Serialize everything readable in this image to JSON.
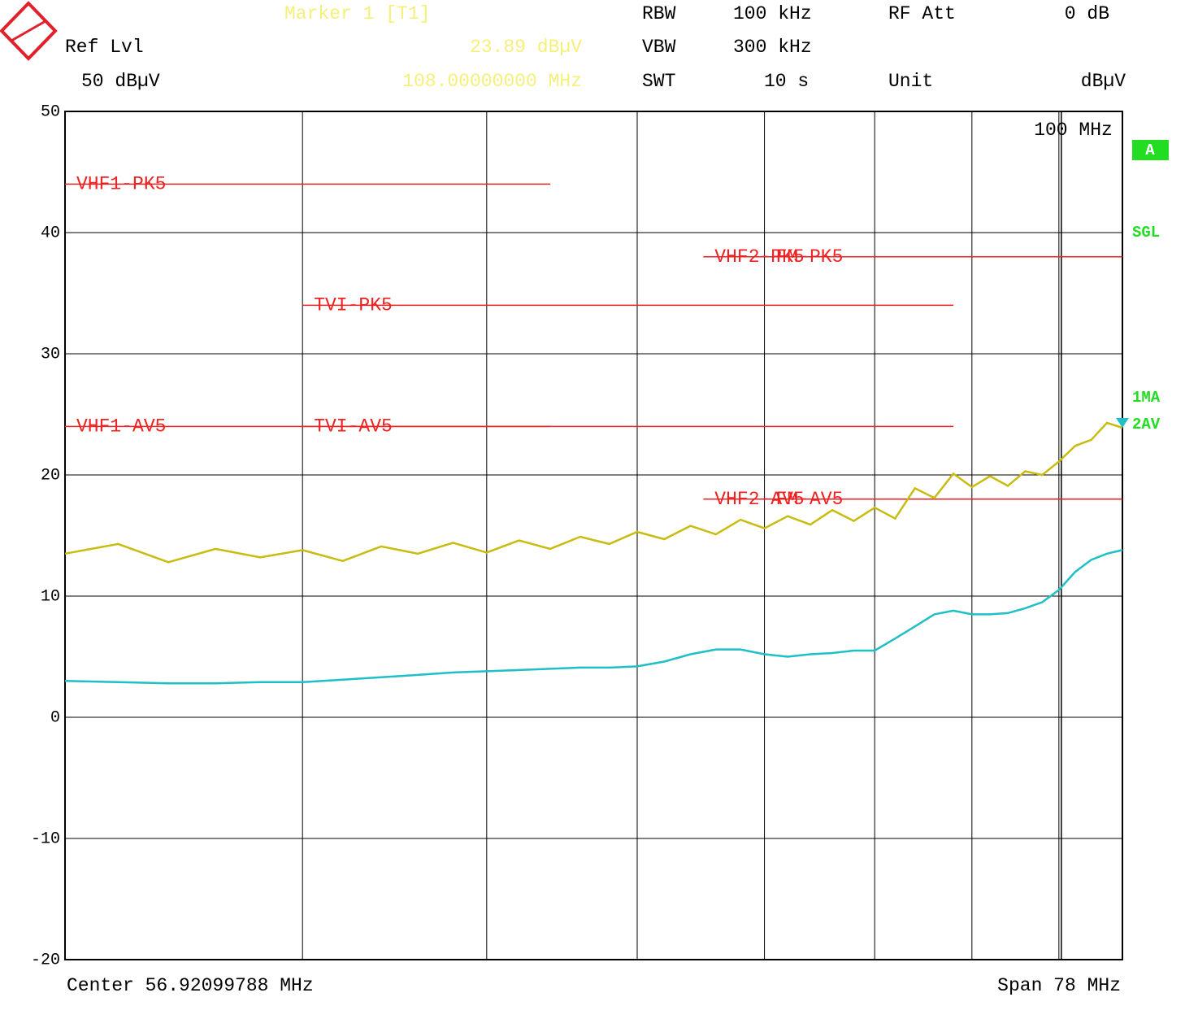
{
  "header": {
    "marker_title": "Marker 1 [T1]",
    "marker_level": "23.89 dBµV",
    "marker_freq": "108.00000000 MHz",
    "ref_lvl_label": "Ref Lvl",
    "ref_lvl": "50 dBµV",
    "rbw_label": "RBW",
    "rbw": "100 kHz",
    "vbw_label": "VBW",
    "vbw": "300 kHz",
    "swt_label": "SWT",
    "swt": "10 s",
    "rf_att_label": "RF Att",
    "rf_att": "0 dB",
    "unit_label": "Unit",
    "unit": "dBµV"
  },
  "footer": {
    "center": "Center 56.92099788 MHz",
    "span": "Span 78 MHz"
  },
  "side": {
    "trace_mode": "A",
    "sweep": "SGL"
  },
  "chart_data": {
    "type": "line",
    "log_x": true,
    "grid": true,
    "xlim": [
      30,
      108
    ],
    "xticks": [
      40,
      50,
      60,
      70,
      80,
      90,
      100
    ],
    "ylim": [
      -20,
      50
    ],
    "yticks": [
      -20,
      -10,
      0,
      10,
      20,
      30,
      40,
      50
    ],
    "display_line": {
      "value": 100,
      "label": "100 MHz"
    },
    "x": [
      30,
      32,
      34,
      36,
      38,
      40,
      42,
      44,
      46,
      48,
      50,
      52,
      54,
      56,
      58,
      60,
      62,
      64,
      66,
      68,
      70,
      72,
      74,
      76,
      78,
      80,
      82,
      84,
      86,
      88,
      90,
      92,
      94,
      96,
      98,
      100,
      102,
      104,
      106,
      108
    ],
    "series": [
      {
        "name": "1MA",
        "color": "#c8bc10",
        "values": [
          13.5,
          14.3,
          12.8,
          13.9,
          13.2,
          13.8,
          12.9,
          14.1,
          13.5,
          14.4,
          13.6,
          14.6,
          13.9,
          14.9,
          14.3,
          15.3,
          14.7,
          15.8,
          15.1,
          16.3,
          15.6,
          16.6,
          15.9,
          17.1,
          16.2,
          17.3,
          16.4,
          18.9,
          18.1,
          20.1,
          19.0,
          19.9,
          19.1,
          20.3,
          20.0,
          21.1,
          22.4,
          22.9,
          24.3,
          23.89
        ]
      },
      {
        "name": "2AV",
        "color": "#1fbfc8",
        "values": [
          3.0,
          2.9,
          2.8,
          2.8,
          2.9,
          2.9,
          3.1,
          3.3,
          3.5,
          3.7,
          3.8,
          3.9,
          4.0,
          4.1,
          4.1,
          4.2,
          4.6,
          5.2,
          5.6,
          5.6,
          5.2,
          5.0,
          5.2,
          5.3,
          5.5,
          5.5,
          6.5,
          7.5,
          8.5,
          8.8,
          8.5,
          8.5,
          8.6,
          9.0,
          9.5,
          10.5,
          12.0,
          13.0,
          13.5,
          13.8
        ]
      }
    ],
    "limit_lines": [
      {
        "name": "VHF1-PK5",
        "color": "#ee2222",
        "x": [
          30,
          54
        ],
        "values": [
          44,
          44
        ]
      },
      {
        "name": "TVI-PK5",
        "color": "#ee2222",
        "x": [
          40,
          88
        ],
        "values": [
          34,
          34
        ]
      },
      {
        "name": "VHF2-PK5",
        "color": "#ee2222",
        "x": [
          65,
          88
        ],
        "values": [
          38,
          38
        ]
      },
      {
        "name": "FM-PK5",
        "color": "#ee2222",
        "x": [
          70,
          108
        ],
        "values": [
          38,
          38
        ]
      },
      {
        "name": "VHF1-AV5",
        "color": "#ee2222",
        "x": [
          30,
          54
        ],
        "values": [
          24,
          24
        ]
      },
      {
        "name": "TVI-AV5",
        "color": "#ee2222",
        "x": [
          40,
          88
        ],
        "values": [
          24,
          24
        ]
      },
      {
        "name": "VHF2-AV5",
        "color": "#ee2222",
        "x": [
          65,
          88
        ],
        "values": [
          18,
          18
        ]
      },
      {
        "name": "FM-AV5",
        "color": "#ee2222",
        "x": [
          70,
          108
        ],
        "values": [
          18,
          18
        ]
      }
    ]
  }
}
